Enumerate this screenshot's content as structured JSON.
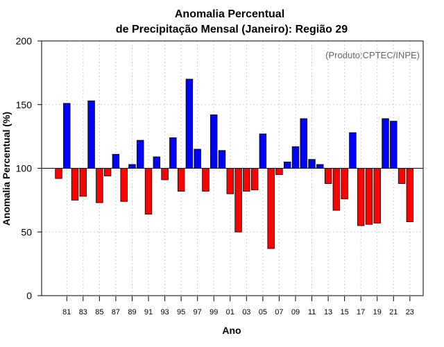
{
  "chart_data": {
    "type": "bar",
    "title_line1": "Anomalia Percentual",
    "title_line2": "de Precipitação Mensal (Janeiro): Região 29",
    "xlabel": "Ano",
    "ylabel": "Anomalia Percentual (%)",
    "credit": "(Produto:CPTEC/INPE)",
    "baseline": 100,
    "ylim": [
      0,
      200
    ],
    "yticks": [
      0,
      50,
      100,
      150,
      200
    ],
    "grid": true,
    "colors": {
      "above": "#0000ff",
      "below": "#ff0000",
      "edge": "#000000",
      "grid": "#cccccc",
      "credit": "#666666"
    },
    "categories": [
      "80",
      "81",
      "82",
      "83",
      "84",
      "85",
      "86",
      "87",
      "88",
      "89",
      "90",
      "91",
      "92",
      "93",
      "94",
      "95",
      "96",
      "97",
      "98",
      "99",
      "00",
      "01",
      "02",
      "03",
      "04",
      "05",
      "06",
      "07",
      "08",
      "09",
      "10",
      "11",
      "12",
      "13",
      "14",
      "15",
      "16",
      "17",
      "18",
      "19",
      "20",
      "21",
      "22",
      "23",
      "24"
    ],
    "xtick_labels": [
      "81",
      "83",
      "85",
      "87",
      "89",
      "91",
      "93",
      "95",
      "97",
      "99",
      "01",
      "03",
      "05",
      "07",
      "09",
      "11",
      "13",
      "15",
      "17",
      "19",
      "21",
      "23"
    ],
    "values": [
      92,
      151,
      75,
      78,
      153,
      73,
      94,
      111,
      74,
      103,
      122,
      64,
      109,
      91,
      124,
      82,
      170,
      115,
      82,
      142,
      114,
      80,
      50,
      82,
      83,
      127,
      37,
      95,
      105,
      117,
      139,
      107,
      103,
      88,
      67,
      76,
      128,
      55,
      56,
      57,
      139,
      137,
      88,
      58,
      100
    ]
  }
}
